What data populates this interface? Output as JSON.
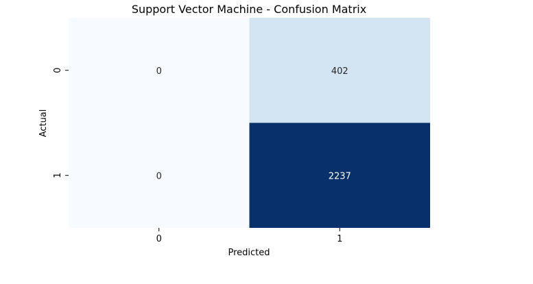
{
  "chart_data": {
    "type": "heatmap",
    "title": "Support Vector Machine - Confusion Matrix",
    "xlabel": "Predicted",
    "ylabel": "Actual",
    "x_categories": [
      "0",
      "1"
    ],
    "y_categories": [
      "0",
      "1"
    ],
    "matrix": [
      [
        0,
        402
      ],
      [
        0,
        2237
      ]
    ],
    "colormap": "Blues",
    "colors": {
      "low": "#f7fbff",
      "mid": "#d3e4f3",
      "high": "#08306b",
      "text_dark": "#262626",
      "text_light": "#ffffff"
    },
    "colorbar": false
  }
}
